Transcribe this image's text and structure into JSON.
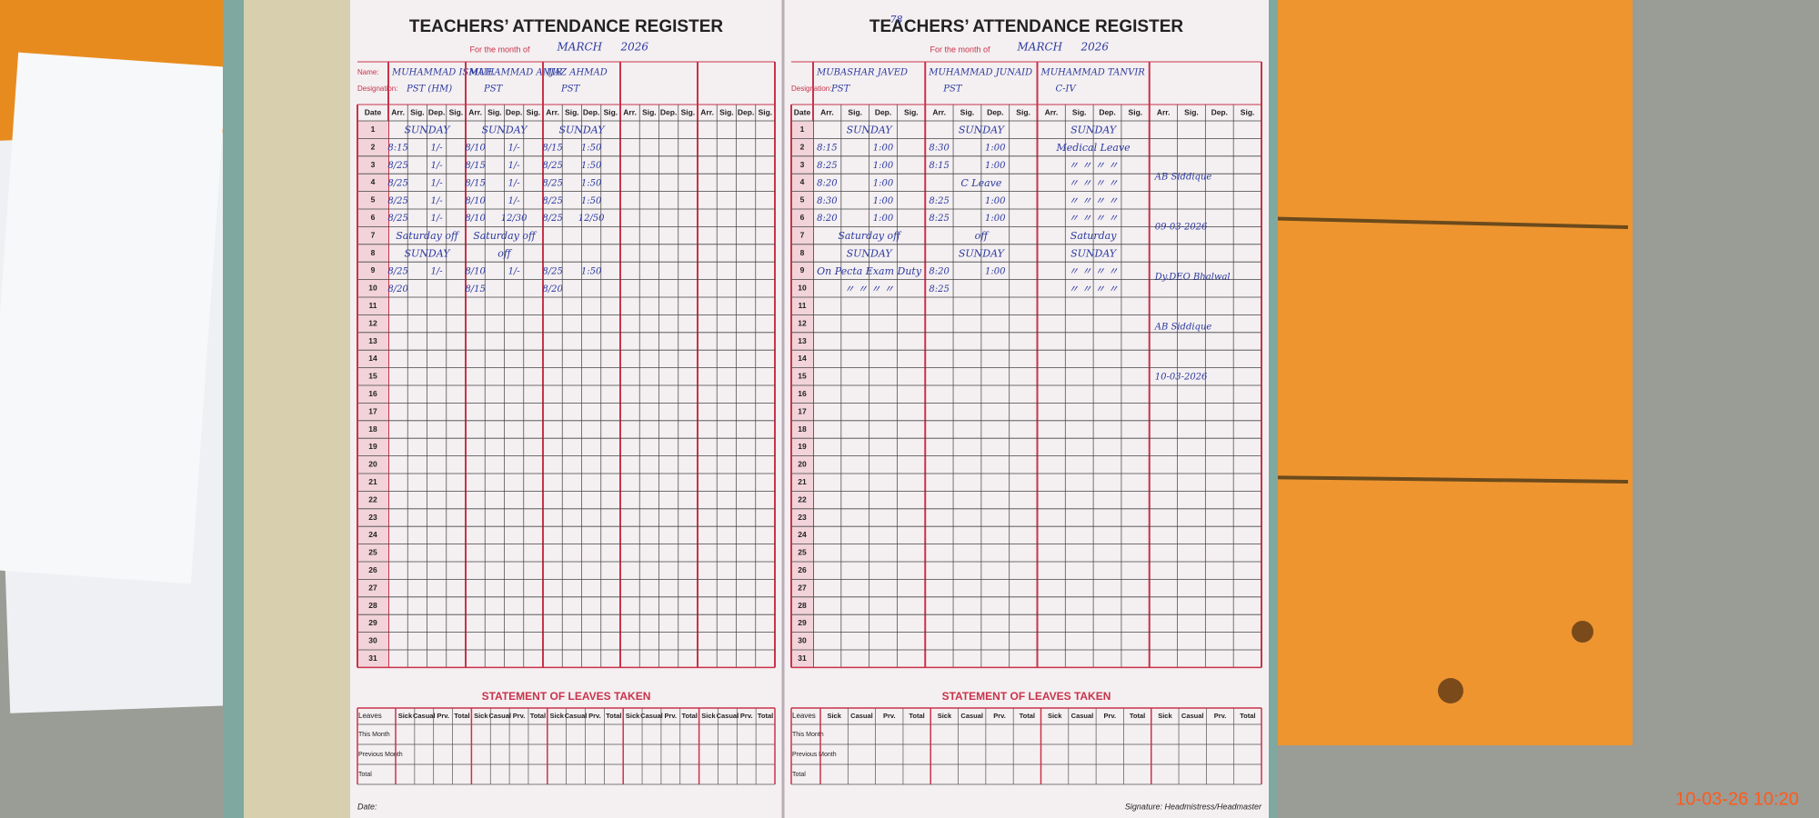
{
  "left_page": {
    "title": "TEACHERS’ ATTENDANCE REGISTER",
    "month_label": "For the month of",
    "month": "MARCH",
    "year": "2026",
    "name_label": "Name:",
    "designation_label": "Designation:",
    "teachers": [
      {
        "name": "MUHAMMAD ISMAIL",
        "designation": "PST (HM)"
      },
      {
        "name": "MUHAMMAD AMIR",
        "designation": "PST"
      },
      {
        "name": "IJAZ AHMAD",
        "designation": "PST"
      },
      {
        "name": null,
        "designation": null
      },
      {
        "name": null,
        "designation": null
      }
    ],
    "date_header": "Date",
    "columns": [
      "Arr.",
      "Sig.",
      "Dep.",
      "Sig."
    ],
    "dates": [
      1,
      2,
      3,
      4,
      5,
      6,
      7,
      8,
      9,
      10,
      11,
      12,
      13,
      14,
      15,
      16,
      17,
      18,
      19,
      20,
      21,
      22,
      23,
      24,
      25,
      26,
      27,
      28,
      29,
      30,
      31
    ],
    "entries": [
      {
        "row": 1,
        "cells": [
          "SUNDAY",
          "SUNDAY",
          "SUNDAY",
          null,
          null
        ]
      },
      {
        "row": 2,
        "cells": [
          [
            "8:15",
            "1/-"
          ],
          [
            "8/10",
            "1/-"
          ],
          [
            "8/15",
            "1:50"
          ],
          null,
          null
        ]
      },
      {
        "row": 3,
        "cells": [
          [
            "8/25",
            "1/-"
          ],
          [
            "8/15",
            "1/-"
          ],
          [
            "8/25",
            "1:50"
          ],
          null,
          null
        ]
      },
      {
        "row": 4,
        "cells": [
          [
            "8/25",
            "1/-"
          ],
          [
            "8/15",
            "1/-"
          ],
          [
            "8/25",
            "1:50"
          ],
          null,
          null
        ]
      },
      {
        "row": 5,
        "cells": [
          [
            "8/25",
            "1/-"
          ],
          [
            "8/10",
            "1/-"
          ],
          [
            "8/25",
            "1:50"
          ],
          null,
          null
        ]
      },
      {
        "row": 6,
        "cells": [
          [
            "8/25",
            "1/-"
          ],
          [
            "8/10",
            "12/30"
          ],
          [
            "8/25",
            "12/50"
          ],
          null,
          null
        ]
      },
      {
        "row": 7,
        "cells": [
          "Saturday off",
          "Saturday off",
          null,
          null,
          null
        ]
      },
      {
        "row": 8,
        "cells": [
          "SUNDAY",
          "off",
          null,
          null,
          null
        ]
      },
      {
        "row": 9,
        "cells": [
          [
            "8/25",
            "1/-"
          ],
          [
            "8/10",
            "1/-"
          ],
          [
            "8/25",
            "1:50"
          ],
          null,
          null
        ]
      },
      {
        "row": 10,
        "cells": [
          [
            "8/20",
            null
          ],
          [
            "8/15",
            null
          ],
          [
            "8/20",
            null
          ],
          null,
          null
        ]
      }
    ],
    "leaves_title": "STATEMENT OF LEAVES TAKEN",
    "leaves_header": "Leaves",
    "leave_columns": [
      "Sick",
      "Casual",
      "Prv.",
      "Total"
    ],
    "leave_rows": [
      "This Month",
      "Previous Month",
      "Total"
    ],
    "footer": "Date:"
  },
  "right_page": {
    "page_number": "78",
    "title": "TEACHERS’ ATTENDANCE REGISTER",
    "month_label": "For the month of",
    "month": "MARCH",
    "year": "2026",
    "designation_label": "Designation:",
    "teachers": [
      {
        "name": "MUBASHAR JAVED",
        "designation": "PST"
      },
      {
        "name": "MUHAMMAD JUNAID",
        "designation": "PST"
      },
      {
        "name": "MUHAMMAD TANVIR",
        "designation": "C-IV"
      },
      {
        "name": null,
        "designation": null
      }
    ],
    "date_header": "Date",
    "columns": [
      "Arr.",
      "Sig.",
      "Dep.",
      "Sig."
    ],
    "dates": [
      1,
      2,
      3,
      4,
      5,
      6,
      7,
      8,
      9,
      10,
      11,
      12,
      13,
      14,
      15,
      16,
      17,
      18,
      19,
      20,
      21,
      22,
      23,
      24,
      25,
      26,
      27,
      28,
      29,
      30,
      31
    ],
    "entries": [
      {
        "row": 1,
        "cells": [
          "SUNDAY",
          "SUNDAY",
          "SUNDAY",
          null
        ]
      },
      {
        "row": 2,
        "cells": [
          [
            "8:15",
            "1:00"
          ],
          [
            "8:30",
            "1:00"
          ],
          "Medical Leave",
          null
        ]
      },
      {
        "row": 3,
        "cells": [
          [
            "8:25",
            "1:00"
          ],
          [
            "8:15",
            "1:00"
          ],
          "〃 〃 〃 〃",
          null
        ]
      },
      {
        "row": 4,
        "cells": [
          [
            "8:20",
            "1:00"
          ],
          "C Leave",
          "〃 〃 〃 〃",
          null
        ]
      },
      {
        "row": 5,
        "cells": [
          [
            "8:30",
            "1:00"
          ],
          [
            "8:25",
            "1:00"
          ],
          "〃 〃 〃 〃",
          null
        ]
      },
      {
        "row": 6,
        "cells": [
          [
            "8:20",
            "1:00"
          ],
          [
            "8:25",
            "1:00"
          ],
          "〃 〃 〃 〃",
          null
        ]
      },
      {
        "row": 7,
        "cells": [
          "Saturday off",
          "off",
          "Saturday",
          null
        ]
      },
      {
        "row": 8,
        "cells": [
          "SUNDAY",
          "SUNDAY",
          "SUNDAY",
          null
        ]
      },
      {
        "row": 9,
        "cells": [
          "On Pecta Exam Duty",
          [
            "8:20",
            "1:00"
          ],
          "〃 〃 〃 〃",
          null
        ]
      },
      {
        "row": 10,
        "cells": [
          "〃 〃 〃 〃",
          [
            "8:25",
            null
          ],
          "〃 〃 〃 〃",
          null
        ]
      }
    ],
    "stamps": [
      "AB Siddique",
      "09-03-2026",
      "Dy.DEO Bhalwal",
      "AB Siddique",
      "10-03-2026"
    ],
    "leaves_title": "STATEMENT OF LEAVES TAKEN",
    "leaves_header": "Leaves",
    "leave_columns": [
      "Sick",
      "Casual",
      "Prv.",
      "Total"
    ],
    "leave_rows": [
      "This Month",
      "Previous Month",
      "Total"
    ],
    "footer": "Signature: Headmistress/Headmaster"
  },
  "timestamp": "10-03-26  10:20"
}
